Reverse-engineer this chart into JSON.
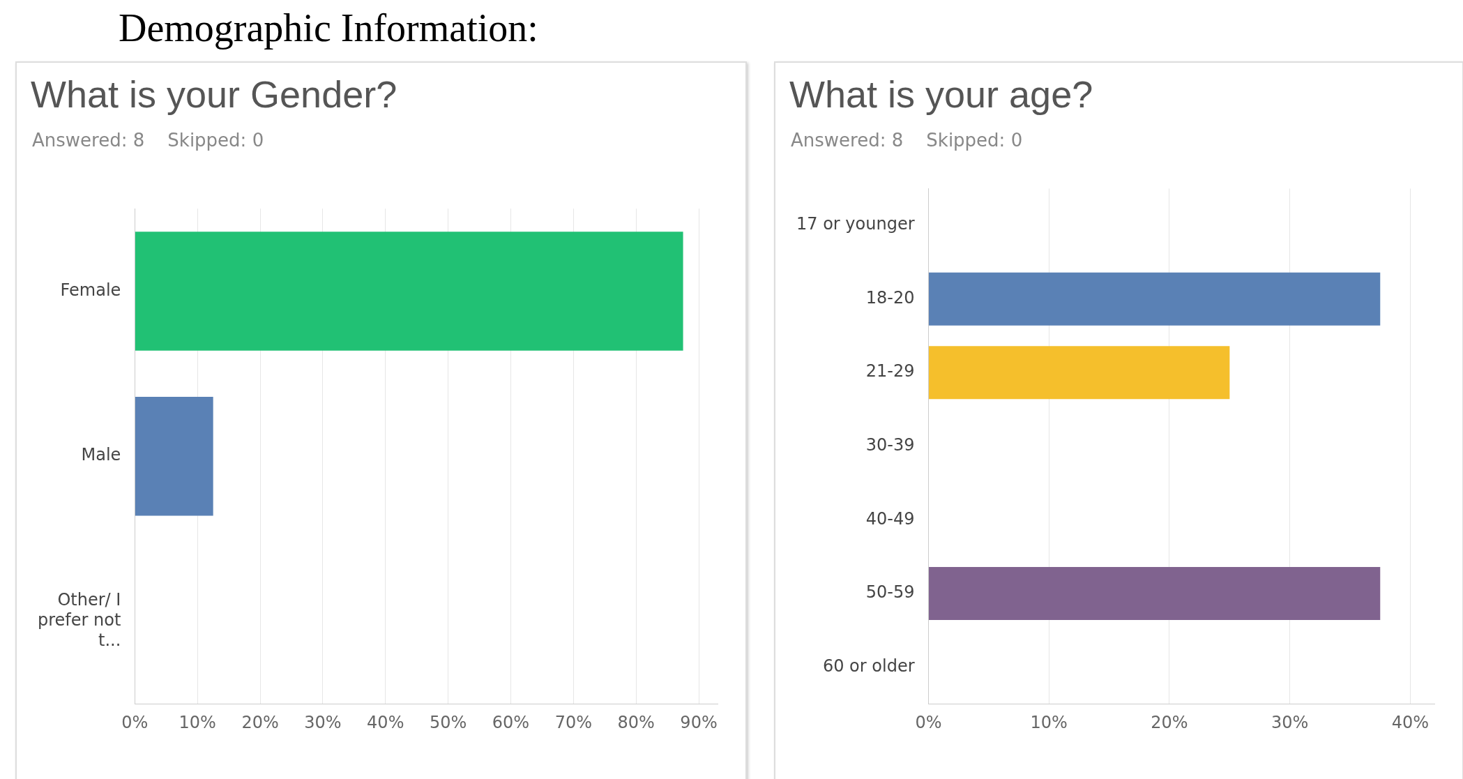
{
  "chart_data": [
    {
      "type": "bar",
      "orientation": "horizontal",
      "title": "What is your Gender?",
      "subtitle": "Answered: 8    Skipped: 0",
      "annotations": [
        "Demographic Information:"
      ],
      "categories": [
        "Female",
        "Male",
        "Other/ I prefer not t..."
      ],
      "values": [
        87.5,
        12.5,
        0
      ],
      "colors": [
        "#21c174",
        "#5a81b5",
        "#8d8d8d"
      ],
      "xlim": [
        0,
        93
      ],
      "xticks": [
        {
          "value": 0,
          "label": "0%"
        },
        {
          "value": 10,
          "label": "10%"
        },
        {
          "value": 20,
          "label": "20%"
        },
        {
          "value": 30,
          "label": "30%"
        },
        {
          "value": 40,
          "label": "40%"
        },
        {
          "value": 50,
          "label": "50%"
        },
        {
          "value": 60,
          "label": "60%"
        },
        {
          "value": 70,
          "label": "70%"
        },
        {
          "value": 80,
          "label": "80%"
        },
        {
          "value": 90,
          "label": "90%"
        }
      ],
      "grid": "x",
      "legend": false
    },
    {
      "type": "bar",
      "orientation": "horizontal",
      "title": "What is your age?",
      "subtitle": "Answered: 8    Skipped: 0",
      "categories": [
        "17 or younger",
        "18-20",
        "21-29",
        "30-39",
        "40-49",
        "50-59",
        "60 or older"
      ],
      "values": [
        0,
        37.5,
        25,
        0,
        0,
        37.5,
        0
      ],
      "colors": [
        "#8d8d8d",
        "#5a81b5",
        "#f5bf2c",
        "#8d8d8d",
        "#8d8d8d",
        "#80638f",
        "#8d8d8d"
      ],
      "xlim": [
        0,
        42
      ],
      "xticks": [
        {
          "value": 0,
          "label": "0%"
        },
        {
          "value": 10,
          "label": "10%"
        },
        {
          "value": 20,
          "label": "20%"
        },
        {
          "value": 30,
          "label": "30%"
        },
        {
          "value": 40,
          "label": "40%"
        }
      ],
      "grid": "x",
      "legend": false
    }
  ]
}
